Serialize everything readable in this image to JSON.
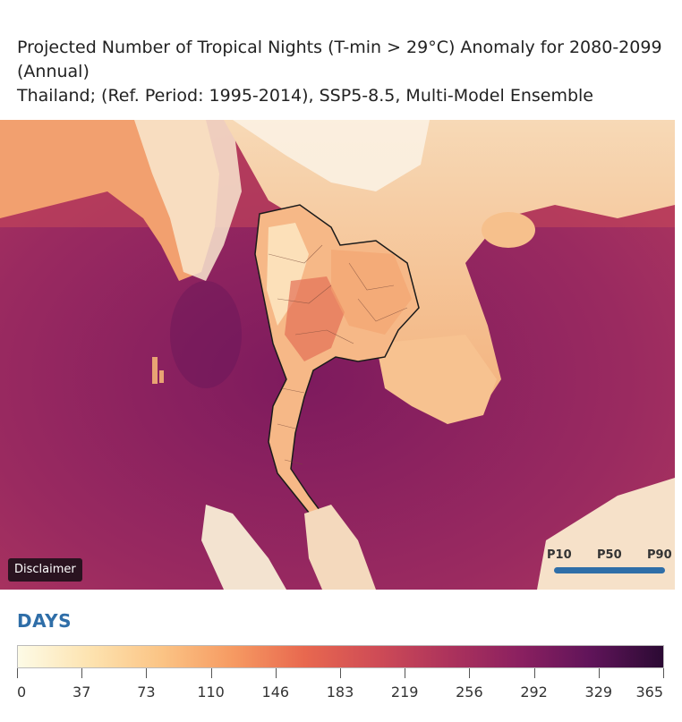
{
  "title": {
    "line1": "Projected Number of Tropical Nights (T-min > 29°C) Anomaly for 2080-2099",
    "line2": "(Annual)",
    "line3": "Thailand; (Ref. Period: 1995-2014), SSP5-8.5, Multi-Model Ensemble"
  },
  "map": {
    "disclaimer_label": "Disclaimer",
    "percentile_selector": {
      "options": [
        "P10",
        "P50",
        "P90"
      ],
      "selected": "P50"
    }
  },
  "legend": {
    "unit": "DAYS",
    "ticks": [
      "0",
      "37",
      "73",
      "110",
      "146",
      "183",
      "219",
      "256",
      "292",
      "329",
      "365"
    ],
    "range": [
      0,
      365
    ],
    "colors": [
      "#fdfbe6",
      "#fde3b0",
      "#fbc485",
      "#f69a62",
      "#e8684f",
      "#cf4c56",
      "#ad335c",
      "#8b2060",
      "#5f1459",
      "#2b0a33"
    ]
  }
}
